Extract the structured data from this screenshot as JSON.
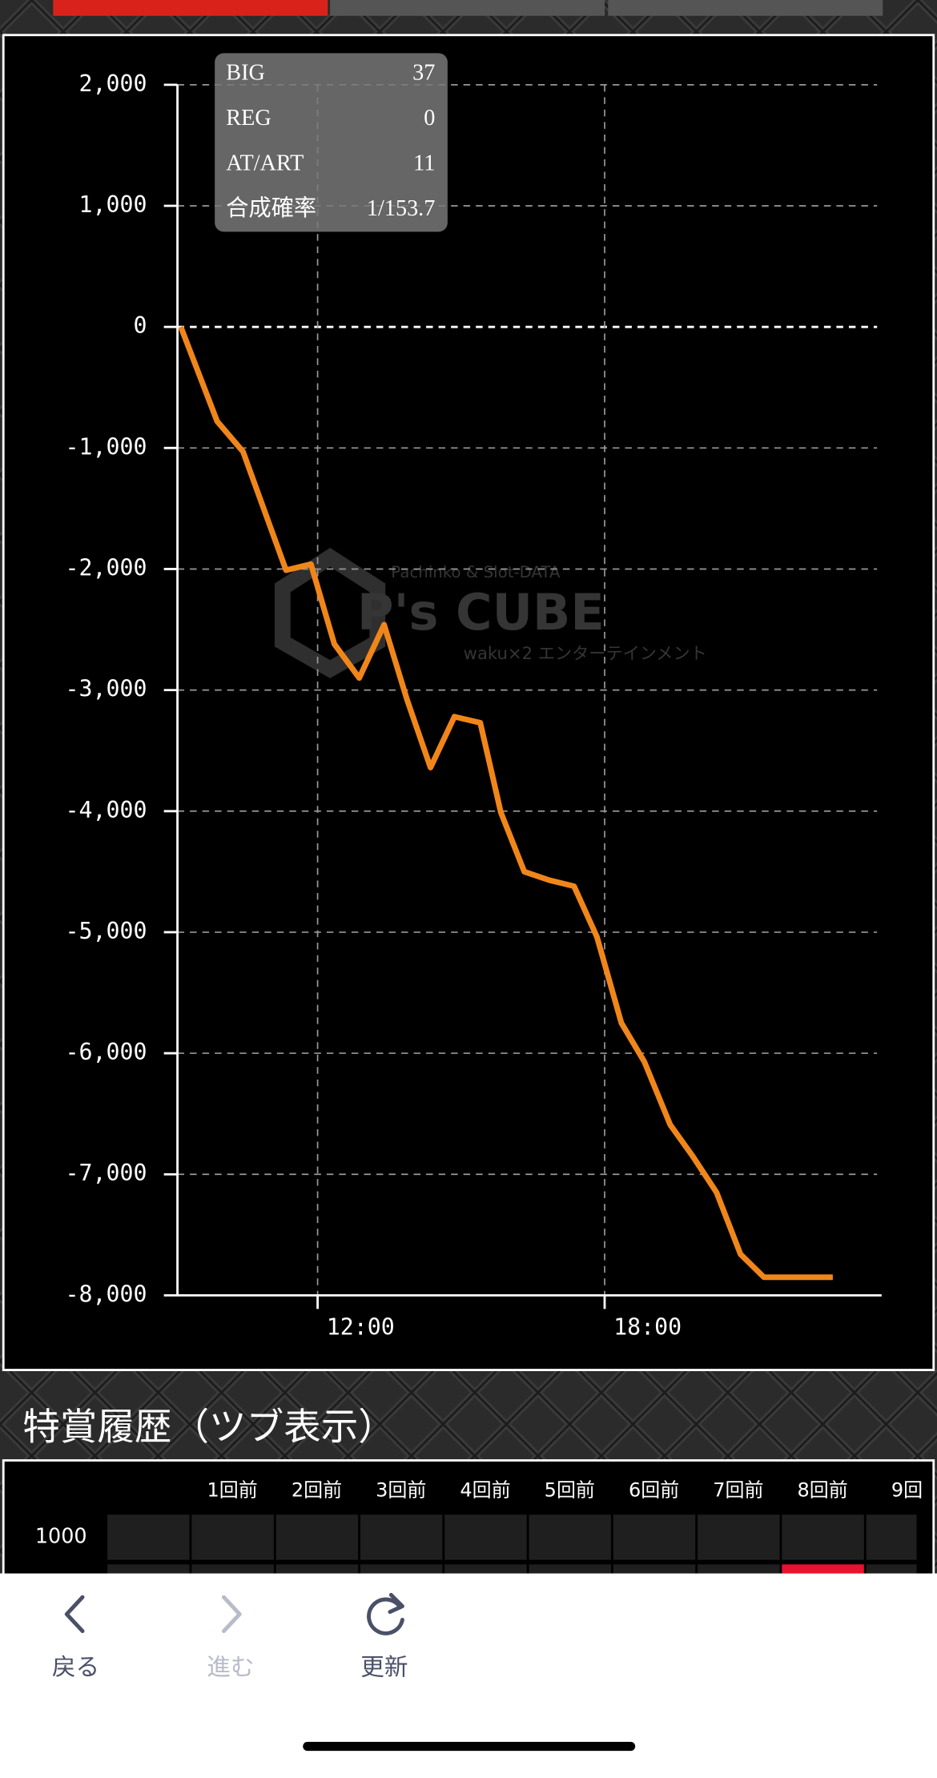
{
  "chart_data": {
    "type": "line",
    "x": [
      9.14,
      9.9,
      10.44,
      11.34,
      11.86,
      12.35,
      12.87,
      13.39,
      13.87,
      14.36,
      14.86,
      15.4,
      15.83,
      16.32,
      16.84,
      17.36,
      17.84,
      18.35,
      18.83,
      19.37,
      19.84,
      20.34,
      20.84,
      21.33,
      22.77
    ],
    "series": [
      {
        "color": "#f0861a",
        "values": [
          0,
          -780,
          -1030,
          -2010,
          -1960,
          -2620,
          -2900,
          -2460,
          -3080,
          -3640,
          -3220,
          -3270,
          -4010,
          -4500,
          -4570,
          -4620,
          -5040,
          -5750,
          -6070,
          -6590,
          -6850,
          -7150,
          -7660,
          -7850,
          -7850
        ]
      }
    ],
    "xlim": [
      9.07,
      23.79
    ],
    "xticks": [
      {
        "value": 12,
        "label": "12:00"
      },
      {
        "value": 18,
        "label": "18:00"
      }
    ],
    "ylim": [
      -8000,
      2000
    ],
    "yticks": [
      {
        "value": -8000,
        "label": "-8,000"
      },
      {
        "value": -7000,
        "label": "-7,000"
      },
      {
        "value": -6000,
        "label": "-6,000"
      },
      {
        "value": -5000,
        "label": "-5,000"
      },
      {
        "value": -4000,
        "label": "-4,000"
      },
      {
        "value": -3000,
        "label": "-3,000"
      },
      {
        "value": -2000,
        "label": "-2,000"
      },
      {
        "value": -1000,
        "label": "-1,000"
      },
      0,
      {
        "value": 1000,
        "label": "1,000"
      },
      {
        "value": 2000,
        "label": "2,000"
      }
    ],
    "grid": true
  },
  "stats": [
    {
      "label": "BIG",
      "value": "37"
    },
    {
      "label": "REG",
      "value": "0"
    },
    {
      "label": "AT/ART",
      "value": "11"
    },
    {
      "label": "合成確率",
      "value": "1/153.7"
    }
  ],
  "watermark": {
    "top": "Pachinko & Slot-DATA",
    "logo": "P's CUBE",
    "bottom": "waku×2 エンターテインメント"
  },
  "history": {
    "title": "特賞履歴（ツブ表示）",
    "columns": [
      "1回前",
      "2回前",
      "3回前",
      "4回前",
      "5回前",
      "6回前",
      "7回前",
      "8回前",
      "9回"
    ],
    "rows": [
      "1000"
    ]
  },
  "nav": {
    "back": "戻る",
    "forward": "進む",
    "reload": "更新"
  }
}
